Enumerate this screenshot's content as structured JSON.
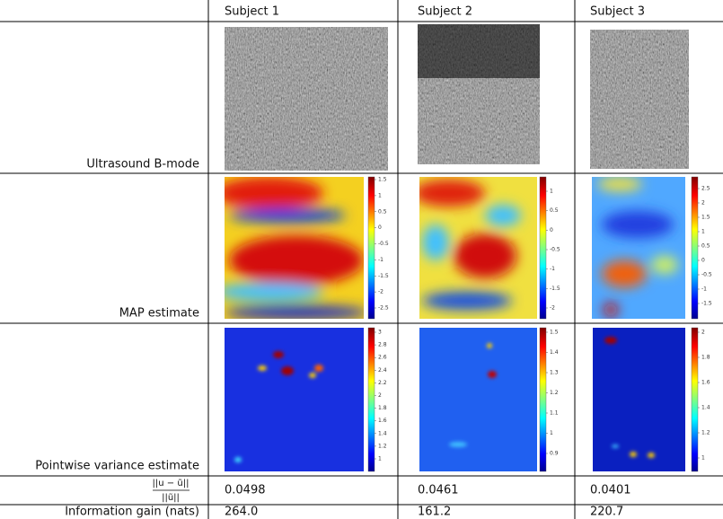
{
  "header": {
    "columns": [
      "Subject 1",
      "Subject 2",
      "Subject 3"
    ]
  },
  "rows": [
    {
      "label": "Ultrasound B-mode"
    },
    {
      "label": "MAP estimate",
      "colorbars": [
        [
          1.5,
          1,
          0.5,
          0,
          -0.5,
          -1,
          -1.5,
          -2,
          -2.5
        ],
        [
          1,
          0.5,
          0,
          -0.5,
          -1,
          -1.5,
          -2
        ],
        [
          2.5,
          2,
          1.5,
          1,
          0.5,
          0,
          -0.5,
          -1,
          -1.5
        ]
      ]
    },
    {
      "label": "Pointwise variance estimate",
      "colorbars": [
        [
          3,
          2.8,
          2.6,
          2.4,
          2.2,
          2,
          1.8,
          1.6,
          1.4,
          1.2,
          1
        ],
        [
          1.5,
          1.4,
          1.3,
          1.2,
          1.1,
          1,
          0.9
        ],
        [
          2,
          1.8,
          1.6,
          1.4,
          1.2,
          1
        ]
      ]
    },
    {
      "label": {
        "numerator": "||u − ũ||",
        "denominator": "||ũ||"
      },
      "values": [
        "0.0498",
        "0.0461",
        "0.0401"
      ]
    },
    {
      "label": "Information gain (nats)",
      "values": [
        "264.0",
        "161.2",
        "220.7"
      ]
    }
  ]
}
